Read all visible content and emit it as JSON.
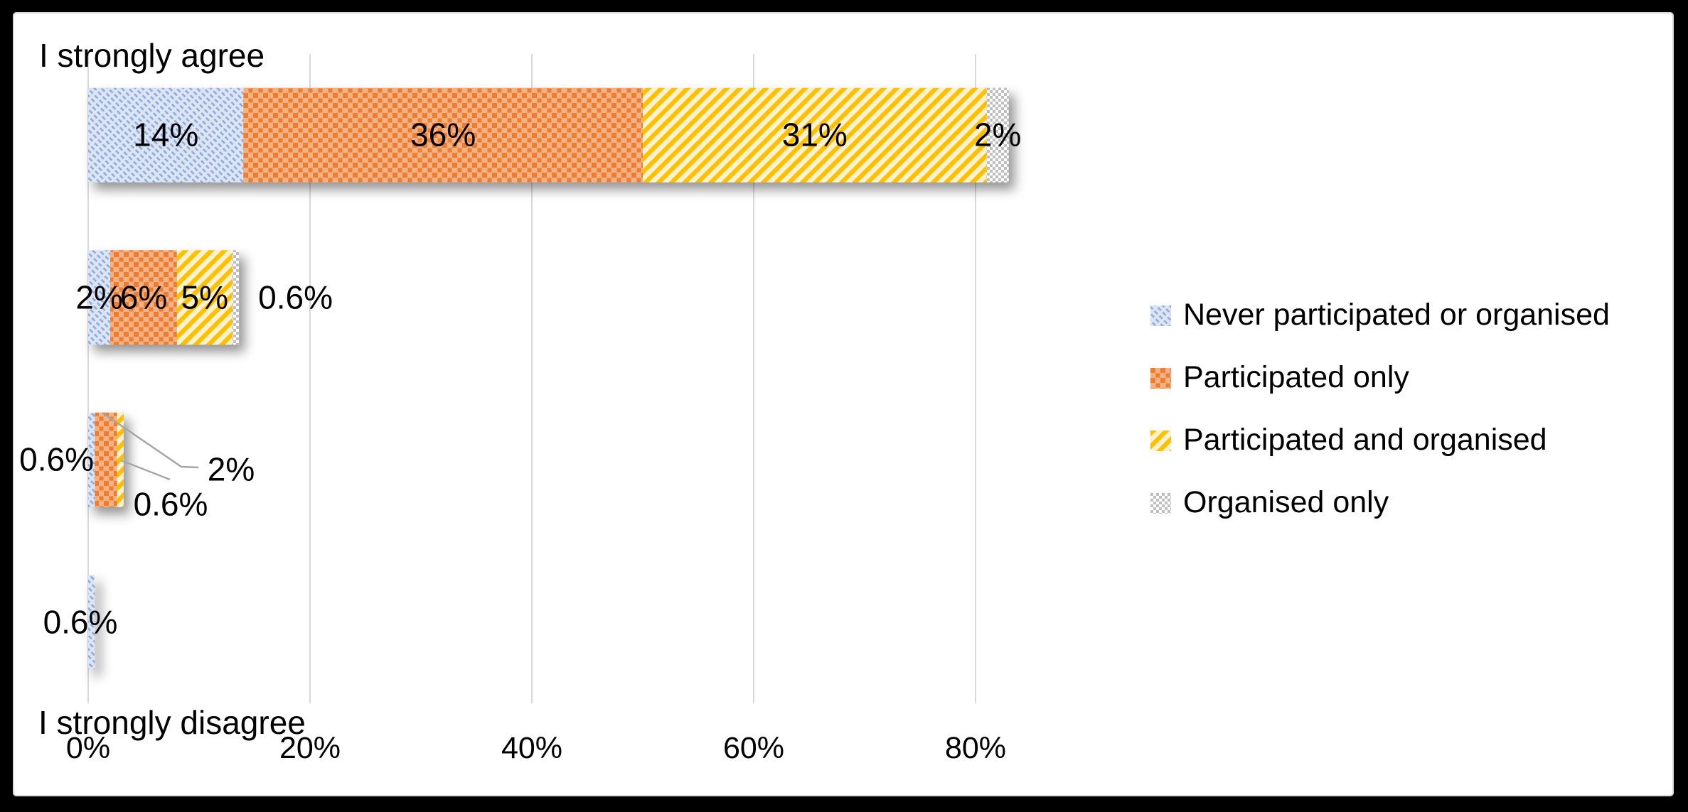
{
  "frame": {
    "background": "#000000",
    "panel_background": "#ffffff",
    "panel_border": "#d9d9d9"
  },
  "chart_data": {
    "type": "bar",
    "orientation": "horizontal",
    "stacked": true,
    "grid": true,
    "title": "",
    "xlabel": "",
    "ylabel": "",
    "xlim_pct": [
      0,
      100
    ],
    "x_axis": {
      "tick_labels": [
        "0%",
        "20%",
        "40%",
        "60%",
        "80%"
      ],
      "tick_values": [
        0,
        20,
        40,
        60,
        80
      ]
    },
    "y_axis": {
      "rows": 4,
      "top_label": "I strongly agree",
      "bottom_label": "I strongly disagree"
    },
    "series": [
      {
        "name": "Never participated or organised",
        "pattern": "light-diagonal-down",
        "color_bg": "#dbe5f3",
        "color_fg": "#8faadc",
        "values": [
          14,
          2,
          0.6,
          0.6
        ],
        "labels": [
          "14%",
          "2%",
          "0.6%",
          "0.6%"
        ]
      },
      {
        "name": "Participated only",
        "pattern": "dotted-squares",
        "color_bg": "#f4b183",
        "color_fg": "#ed7d31",
        "values": [
          36,
          6,
          2,
          0
        ],
        "labels": [
          "36%",
          "6%",
          "2%",
          ""
        ]
      },
      {
        "name": "Participated and organised",
        "pattern": "wide-diagonal-up",
        "color_bg": "#fdf2cf",
        "color_fg": "#ffc000",
        "values": [
          31,
          5,
          0.6,
          0
        ],
        "labels": [
          "31%",
          "5%",
          "0.6%",
          ""
        ]
      },
      {
        "name": "Organised only",
        "pattern": "small-checker",
        "color_bg": "#ffffff",
        "color_fg": "#bfbfbf",
        "values": [
          2,
          0.6,
          0,
          0
        ],
        "labels": [
          "2%",
          "0.6%",
          "",
          ""
        ]
      }
    ],
    "legend": {
      "position": "right"
    },
    "colors": {
      "gridline": "#d9d9d9",
      "leader_line": "#a6a6a6",
      "text": "#000000"
    }
  }
}
